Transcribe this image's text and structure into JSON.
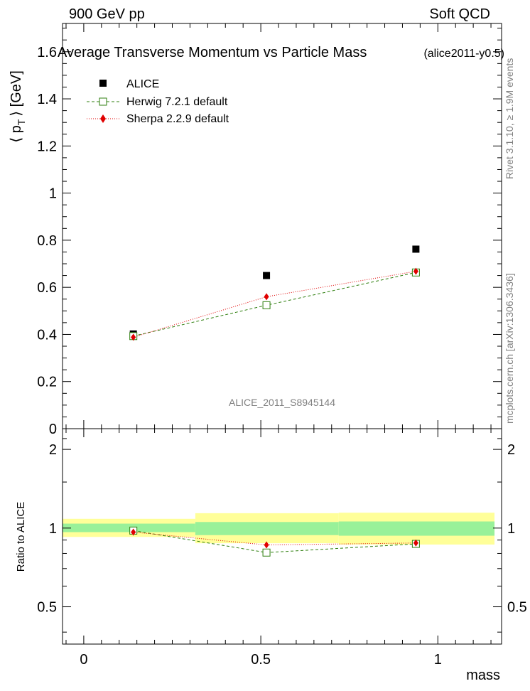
{
  "header": {
    "left": "900 GeV pp",
    "right": "Soft QCD"
  },
  "side_labels": {
    "rivet_prefix": "Rivet 3.1.10,",
    "rivet_suffix": "1.9M events",
    "rivet_geq": "≥",
    "mcplots": "mcplots.cern.ch [arXiv:1306.3436]"
  },
  "chart_data": [
    {
      "type": "scatter",
      "title": "Average Transverse Momentum vs Particle Mass",
      "tag": "(alice2011-y0.5)",
      "ylabel_main": "⟨ p",
      "ylabel_sub": "T",
      "ylabel_rest": "⟩ [GeV]",
      "watermark": "ALICE_2011_S8945144",
      "xlim": [
        -0.06,
        1.18
      ],
      "ylim": [
        0,
        1.72
      ],
      "yticks": [
        0,
        0.2,
        0.4,
        0.6,
        0.8,
        1,
        1.2,
        1.4,
        1.6
      ],
      "ytick_labels": [
        "0",
        "0.2",
        "0.4",
        "0.6",
        "0.8",
        "1",
        "1.2",
        "1.4",
        "1.6"
      ],
      "series": [
        {
          "name": "ALICE",
          "color": "#000000",
          "marker": "square",
          "x": [
            0.14,
            0.516,
            0.938
          ],
          "values": [
            0.402,
            0.65,
            0.762
          ]
        },
        {
          "name": "Herwig 7.2.1 default",
          "color": "#2f7f0f",
          "marker": "open-square",
          "line": "dashed",
          "x": [
            0.14,
            0.516,
            0.938
          ],
          "values": [
            0.393,
            0.524,
            0.663
          ]
        },
        {
          "name": "Sherpa 2.2.9 default",
          "color": "#e00000",
          "marker": "diamond",
          "line": "dotted",
          "x": [
            0.14,
            0.516,
            0.938
          ],
          "values": [
            0.388,
            0.56,
            0.668
          ]
        }
      ]
    },
    {
      "type": "scatter",
      "ylabel": "Ratio to ALICE",
      "xlabel": "mass",
      "xlim": [
        -0.06,
        1.18
      ],
      "ylim": [
        0.36,
        2.4
      ],
      "yscale": "log",
      "yticks": [
        0.5,
        1,
        2
      ],
      "ytick_labels": [
        "0.5",
        "1",
        "2"
      ],
      "xticks": [
        0,
        0.5,
        1
      ],
      "xtick_labels": [
        "0",
        "0.5",
        "1"
      ],
      "bands": [
        {
          "x0": -0.06,
          "x1": 0.315,
          "stat_lo": 0.965,
          "stat_hi": 1.04,
          "tot_lo": 0.925,
          "tot_hi": 1.085
        },
        {
          "x0": 0.315,
          "x1": 0.72,
          "stat_lo": 0.94,
          "stat_hi": 1.055,
          "tot_lo": 0.875,
          "tot_hi": 1.14
        },
        {
          "x0": 0.72,
          "x1": 1.16,
          "stat_lo": 0.935,
          "stat_hi": 1.06,
          "tot_lo": 0.865,
          "tot_hi": 1.145
        }
      ],
      "series": [
        {
          "name": "Herwig 7.2.1 default",
          "color": "#2f7f0f",
          "marker": "open-square",
          "line": "dashed",
          "x": [
            0.14,
            0.516,
            0.938
          ],
          "values": [
            0.978,
            0.806,
            0.87
          ]
        },
        {
          "name": "Sherpa 2.2.9 default",
          "color": "#e00000",
          "marker": "diamond",
          "line": "dotted",
          "x": [
            0.14,
            0.516,
            0.938
          ],
          "values": [
            0.965,
            0.862,
            0.877
          ]
        }
      ]
    }
  ]
}
